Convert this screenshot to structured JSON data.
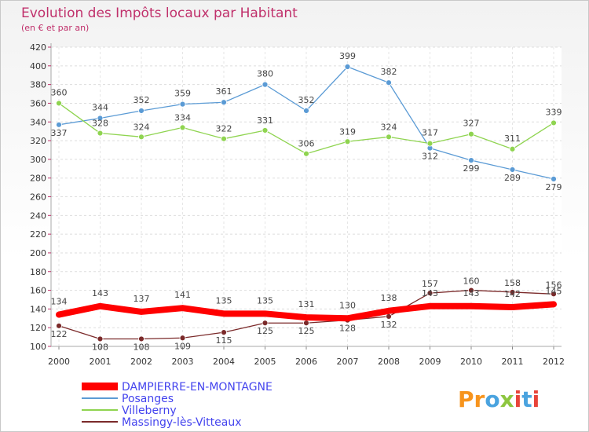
{
  "chart_data": {
    "type": "line",
    "title": "Evolution des Impôts locaux par Habitant",
    "subtitle": "(en € et par an)",
    "x": [
      "2000",
      "2001",
      "2002",
      "2003",
      "2004",
      "2005",
      "2006",
      "2007",
      "2008",
      "2009",
      "2010",
      "2011",
      "2012"
    ],
    "ylim": [
      100,
      420
    ],
    "ytick_step": 20,
    "grid": true,
    "legend_position": "bottom-left",
    "series": [
      {
        "name": "DAMPIERRE-EN-MONTAGNE",
        "color": "#ff0000",
        "values": [
          134,
          143,
          137,
          141,
          135,
          135,
          131,
          130,
          138,
          143,
          143,
          142,
          145
        ]
      },
      {
        "name": "Posanges",
        "color": "#5b9bd5",
        "values": [
          337,
          344,
          352,
          359,
          361,
          380,
          352,
          399,
          382,
          312,
          299,
          289,
          279
        ]
      },
      {
        "name": "Villeberny",
        "color": "#8fd450",
        "values": [
          360,
          328,
          324,
          334,
          322,
          331,
          306,
          319,
          324,
          317,
          327,
          311,
          339
        ]
      },
      {
        "name": "Massingy-lès-Vitteaux",
        "color": "#7b2a2a",
        "values": [
          122,
          108,
          108,
          109,
          115,
          125,
          125,
          128,
          132,
          157,
          160,
          158,
          156
        ]
      }
    ]
  },
  "branding": {
    "logo_text": "Proxiti",
    "colors": [
      "#f7941d",
      "#4aa3df",
      "#8dc63f",
      "#e8443a"
    ]
  }
}
